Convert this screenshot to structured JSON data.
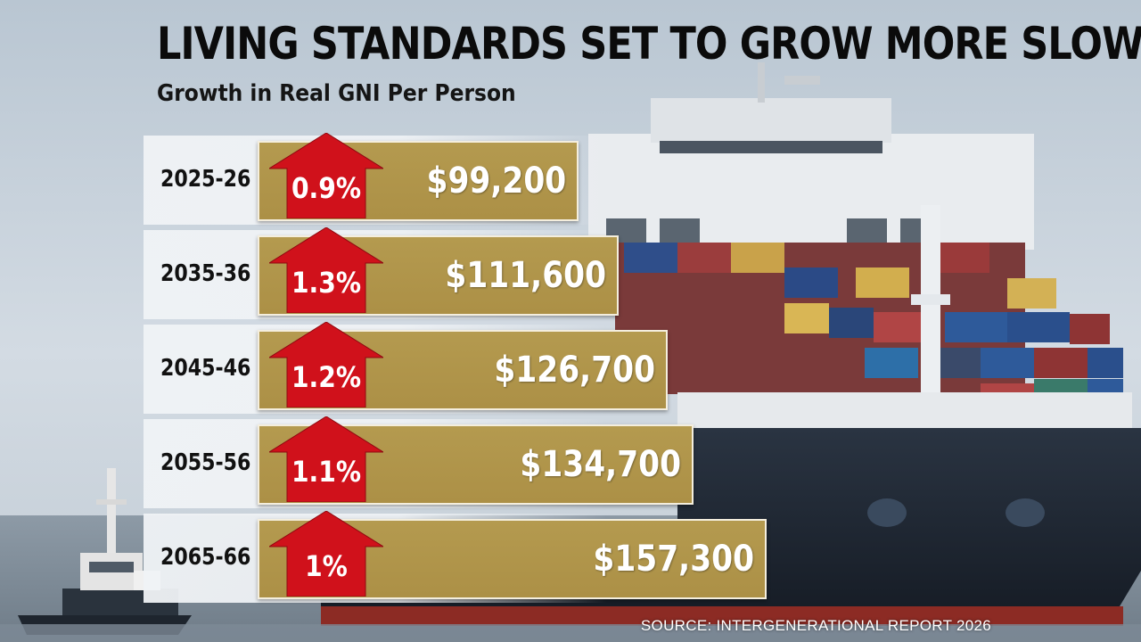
{
  "title": "LIVING STANDARDS SET TO GROW MORE SLOWLY",
  "subtitle": "Growth in Real GNI Per Person",
  "source": "SOURCE: INTERGENERATIONAL REPORT 2026",
  "colors": {
    "bar": "#b49a4f",
    "arrow": "#d0111b",
    "row_background": "#eef1f4"
  },
  "icons": {
    "growth_marker": "arrow-up-icon"
  },
  "chart_data": {
    "type": "bar",
    "orientation": "horizontal",
    "categories": [
      "2025-26",
      "2035-36",
      "2045-46",
      "2055-56",
      "2065-66"
    ],
    "values": [
      99200,
      111600,
      126700,
      134700,
      157300
    ],
    "value_labels": [
      "$99,200",
      "$111,600",
      "$126,700",
      "$134,700",
      "$157,300"
    ],
    "growth_labels": [
      "0.9%",
      "1.3%",
      "1.2%",
      "1.1%",
      "1%"
    ],
    "growth_values": [
      0.9,
      1.3,
      1.2,
      1.1,
      1.0
    ],
    "xlim": [
      0,
      157300
    ],
    "title": "LIVING STANDARDS SET TO GROW MORE SLOWLY",
    "subtitle": "Growth in Real GNI Per Person",
    "xlabel": "",
    "ylabel": "",
    "grid": false,
    "legend": "none"
  }
}
